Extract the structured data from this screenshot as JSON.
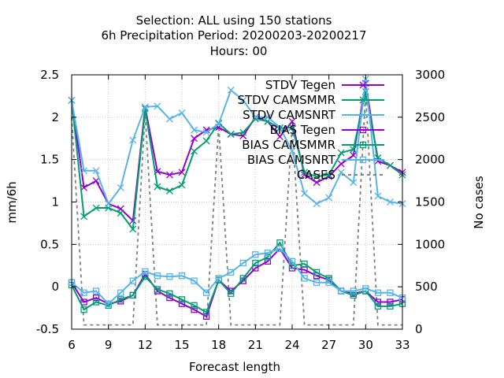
{
  "chart_data": {
    "type": "line",
    "title_lines": [
      "Selection: ALL using   150 stations",
      "6h Precipitation   Period: 20200203-20200217",
      "Hours:  00"
    ],
    "xlabel": "Forecast length",
    "ylabel": "mm/6h",
    "y2label": "No cases",
    "xlim": [
      6,
      33
    ],
    "ylim": [
      -0.5,
      2.5
    ],
    "y2lim": [
      0,
      3000
    ],
    "xticks": [
      6,
      9,
      12,
      15,
      18,
      21,
      24,
      27,
      30,
      33
    ],
    "yticks": [
      "-0.5",
      "0",
      "0.5",
      "1",
      "1.5",
      "2",
      "2.5"
    ],
    "y2ticks": [
      "0",
      "500",
      "1000",
      "1500",
      "2000",
      "2500",
      "3000"
    ],
    "legend_position": "top-right",
    "x": [
      6,
      7,
      8,
      9,
      10,
      11,
      12,
      13,
      14,
      15,
      16,
      17,
      18,
      19,
      20,
      21,
      22,
      23,
      24,
      25,
      26,
      27,
      28,
      29,
      30,
      31,
      32,
      33
    ],
    "series": [
      {
        "name": "STDV Tegen",
        "color": "#9400d3",
        "marker": "x",
        "axis": "y1",
        "values": [
          2.2,
          1.17,
          1.25,
          0.98,
          0.92,
          0.78,
          2.12,
          1.36,
          1.32,
          1.35,
          1.75,
          1.85,
          1.88,
          1.8,
          1.78,
          2.0,
          1.95,
          1.77,
          1.95,
          1.32,
          1.23,
          1.3,
          1.45,
          1.55,
          2.4,
          1.48,
          1.43,
          1.35
        ]
      },
      {
        "name": "STDV CAMSMMR",
        "color": "#009e73",
        "marker": "x",
        "axis": "y1",
        "values": [
          2.2,
          0.83,
          0.93,
          0.93,
          0.87,
          0.68,
          2.1,
          1.18,
          1.13,
          1.2,
          1.6,
          1.72,
          1.93,
          1.8,
          1.82,
          1.98,
          1.95,
          1.87,
          1.88,
          1.35,
          1.3,
          1.32,
          1.58,
          1.62,
          2.3,
          1.52,
          1.43,
          1.32
        ]
      },
      {
        "name": "STDV CAMSNRT",
        "color": "#56b4e9",
        "marker": "x",
        "axis": "y1",
        "values": [
          2.2,
          1.37,
          1.37,
          0.98,
          1.17,
          1.73,
          2.12,
          2.13,
          1.98,
          2.05,
          1.85,
          1.82,
          1.92,
          2.32,
          2.2,
          2.0,
          2.0,
          1.88,
          1.6,
          1.1,
          0.98,
          1.05,
          1.35,
          1.23,
          2.45,
          1.07,
          1.0,
          0.98
        ]
      },
      {
        "name": "BIAS Tegen",
        "color": "#9400d3",
        "marker": "square",
        "axis": "y1",
        "values": [
          0.05,
          -0.18,
          -0.13,
          -0.2,
          -0.17,
          -0.1,
          0.15,
          -0.05,
          -0.13,
          -0.2,
          -0.27,
          -0.35,
          0.08,
          -0.05,
          0.07,
          0.22,
          0.3,
          0.45,
          0.22,
          0.2,
          0.13,
          0.08,
          -0.05,
          -0.08,
          -0.05,
          -0.18,
          -0.18,
          -0.15
        ]
      },
      {
        "name": "BIAS CAMSMMR",
        "color": "#009e73",
        "marker": "square",
        "axis": "y1",
        "values": [
          0.02,
          -0.27,
          -0.18,
          -0.22,
          -0.15,
          -0.1,
          0.12,
          -0.03,
          -0.08,
          -0.15,
          -0.22,
          -0.3,
          0.08,
          -0.08,
          0.1,
          0.28,
          0.35,
          0.52,
          0.25,
          0.27,
          0.17,
          0.1,
          -0.05,
          -0.1,
          -0.05,
          -0.23,
          -0.23,
          -0.2
        ]
      },
      {
        "name": "BIAS CAMSNRT",
        "color": "#56b4e9",
        "marker": "square",
        "axis": "y1",
        "values": [
          0.05,
          -0.07,
          -0.05,
          -0.2,
          -0.07,
          0.07,
          0.18,
          0.13,
          0.12,
          0.13,
          0.07,
          -0.07,
          0.1,
          0.17,
          0.28,
          0.38,
          0.4,
          0.45,
          0.3,
          0.1,
          0.05,
          0.05,
          -0.05,
          -0.05,
          -0.02,
          -0.07,
          -0.07,
          -0.13
        ]
      },
      {
        "name": "CASES",
        "color": "#808080",
        "marker": "none",
        "dash": true,
        "axis": "y2",
        "values": [
          2500,
          50,
          50,
          50,
          50,
          50,
          2550,
          50,
          50,
          50,
          50,
          50,
          2400,
          50,
          50,
          50,
          50,
          50,
          2400,
          50,
          50,
          50,
          50,
          50,
          2800,
          50,
          50,
          50
        ]
      }
    ]
  }
}
